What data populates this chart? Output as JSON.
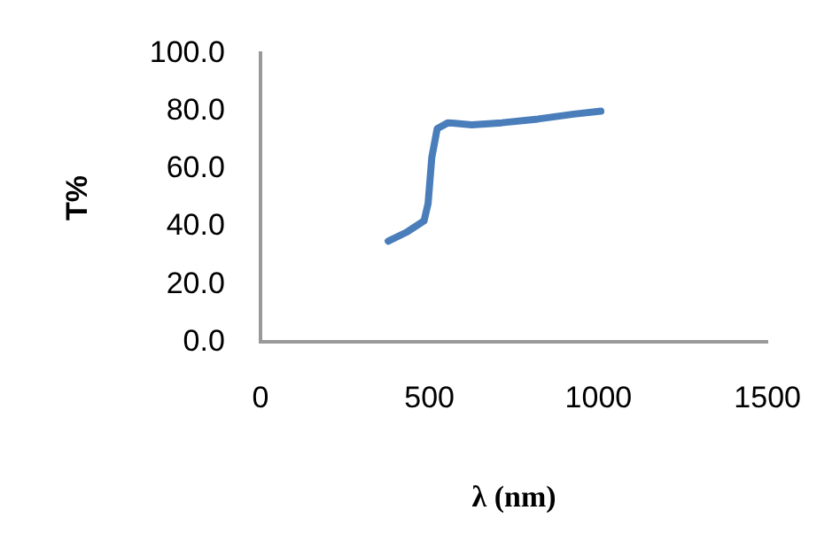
{
  "chart_data": {
    "type": "line",
    "xlabel": "λ (nm)",
    "ylabel": "T%",
    "xlim": [
      0,
      1500
    ],
    "xticks": [
      0,
      500,
      1000,
      1500
    ],
    "ylim": [
      0,
      100
    ],
    "yticks": [
      {
        "value": 0,
        "label": "0.0"
      },
      {
        "value": 20,
        "label": "20.0"
      },
      {
        "value": 40,
        "label": "40.0"
      },
      {
        "value": 60,
        "label": "60.0"
      },
      {
        "value": 80,
        "label": "80.0"
      },
      {
        "value": 100,
        "label": "100.0"
      }
    ],
    "grid": false,
    "legend": false,
    "marker": "none",
    "line_style": "solid",
    "series": [
      {
        "color": "#4a7ebb",
        "x": [
          378,
          431,
          484,
          496,
          507,
          523,
          555,
          625,
          714,
          821,
          927,
          1007
        ],
        "values": [
          35,
          38,
          42,
          48,
          64,
          74,
          76,
          75.3,
          76,
          77.3,
          79,
          80
        ]
      }
    ]
  }
}
